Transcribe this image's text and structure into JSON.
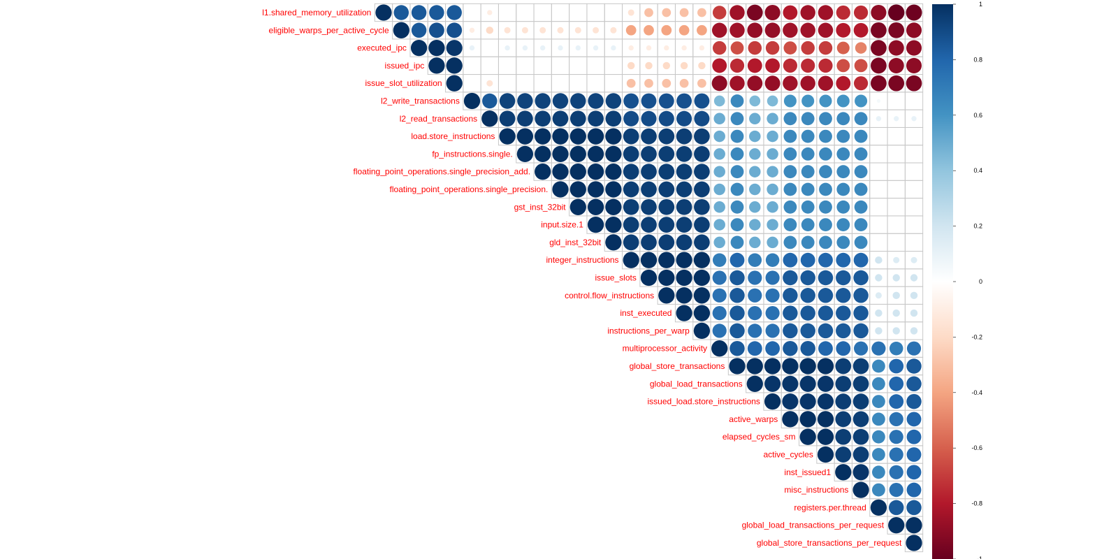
{
  "chart_data": {
    "type": "heatmap",
    "title": "",
    "subtitle": "",
    "variables": [
      "l1.shared_memory_utilization",
      "eligible_warps_per_active_cycle",
      "executed_ipc",
      "issued_ipc",
      "issue_slot_utilization",
      "l2_write_transactions",
      "l2_read_transactions",
      "load.store_instructions",
      "fp_instructions.single.",
      "floating_point_operations.single_precision_add.",
      "floating_point_operations.single_precision.",
      "gst_inst_32bit",
      "input.size.1",
      "gld_inst_32bit",
      "integer_instructions",
      "issue_slots",
      "control.flow_instructions",
      "inst_executed",
      "instructions_per_warp",
      "multiprocessor_activity",
      "global_store_transactions",
      "global_load_transactions",
      "issued_load.store_instructions",
      "active_warps",
      "elapsed_cycles_sm",
      "active_cycles",
      "inst_issued1",
      "misc_instructions",
      "registers.per.thread",
      "global_load_transactions_per_request",
      "global_store_transactions_per_request"
    ],
    "upper_triangle_rows": [
      [
        1,
        0.85,
        0.85,
        0.85,
        0.85,
        0,
        -0.1,
        0,
        0,
        0,
        0,
        0,
        0,
        0,
        -0.15,
        -0.3,
        -0.3,
        -0.3,
        -0.3,
        -0.7,
        -0.85,
        -0.95,
        -0.9,
        -0.8,
        -0.85,
        -0.85,
        -0.75,
        -0.75,
        -0.9,
        -1.0,
        -0.98
      ],
      [
        1,
        0.85,
        0.88,
        0.88,
        -0.1,
        -0.2,
        -0.15,
        -0.15,
        -0.15,
        -0.15,
        -0.15,
        -0.15,
        -0.15,
        -0.4,
        -0.4,
        -0.4,
        -0.4,
        -0.4,
        -0.85,
        -0.85,
        -0.88,
        -0.88,
        -0.85,
        -0.85,
        -0.85,
        -0.8,
        -0.8,
        -0.95,
        -0.95,
        -0.9
      ],
      [
        1,
        1.0,
        0.98,
        0.1,
        0,
        0.1,
        0.1,
        0.1,
        0.1,
        0.1,
        0.1,
        0.1,
        -0.1,
        -0.1,
        -0.1,
        -0.1,
        -0.1,
        -0.7,
        -0.65,
        -0.7,
        -0.7,
        -0.65,
        -0.7,
        -0.7,
        -0.6,
        -0.5,
        -0.95,
        -0.9,
        -0.9
      ],
      [
        1,
        1.0,
        0,
        0,
        0,
        0,
        0,
        0,
        0,
        0,
        0,
        -0.2,
        -0.2,
        -0.2,
        -0.2,
        -0.2,
        -0.8,
        -0.75,
        -0.8,
        -0.8,
        -0.75,
        -0.75,
        -0.75,
        -0.65,
        -0.65,
        -0.95,
        -0.9,
        -0.9
      ],
      [
        1,
        0,
        -0.15,
        0,
        0,
        0,
        0,
        0,
        0,
        0,
        -0.3,
        -0.3,
        -0.3,
        -0.3,
        -0.3,
        -0.9,
        -0.85,
        -0.88,
        -0.88,
        -0.85,
        -0.85,
        -0.85,
        -0.8,
        -0.75,
        -0.95,
        -0.95,
        -0.95
      ],
      [
        1,
        0.85,
        0.93,
        0.93,
        0.93,
        0.93,
        0.93,
        0.93,
        0.93,
        0.88,
        0.88,
        0.88,
        0.88,
        0.88,
        0.45,
        0.65,
        0.45,
        0.45,
        0.6,
        0.6,
        0.6,
        0.6,
        0.6,
        0.05,
        0,
        0
      ],
      [
        1,
        0.95,
        0.95,
        0.95,
        0.95,
        0.95,
        0.95,
        0.95,
        0.9,
        0.9,
        0.9,
        0.9,
        0.9,
        0.5,
        0.65,
        0.5,
        0.5,
        0.65,
        0.65,
        0.65,
        0.65,
        0.65,
        0.1,
        0.1,
        0.1
      ],
      [
        1,
        1.0,
        1.0,
        1.0,
        1.0,
        1.0,
        1.0,
        0.95,
        0.95,
        0.95,
        0.95,
        0.95,
        0.5,
        0.65,
        0.5,
        0.5,
        0.65,
        0.65,
        0.65,
        0.65,
        0.65,
        0,
        0,
        0
      ],
      [
        1,
        1.0,
        1.0,
        1.0,
        1.0,
        1.0,
        0.95,
        0.95,
        0.95,
        0.95,
        0.95,
        0.5,
        0.65,
        0.5,
        0.5,
        0.65,
        0.65,
        0.65,
        0.65,
        0.65,
        0,
        0,
        0
      ],
      [
        1,
        1.0,
        1.0,
        1.0,
        1.0,
        0.95,
        0.95,
        0.95,
        0.95,
        0.95,
        0.5,
        0.65,
        0.5,
        0.5,
        0.65,
        0.65,
        0.65,
        0.65,
        0.65,
        0,
        0,
        0
      ],
      [
        1,
        1.0,
        1.0,
        1.0,
        0.95,
        0.95,
        0.95,
        0.95,
        0.95,
        0.5,
        0.65,
        0.5,
        0.5,
        0.65,
        0.65,
        0.65,
        0.65,
        0.65,
        0,
        0,
        0
      ],
      [
        1,
        1.0,
        1.0,
        0.95,
        0.95,
        0.95,
        0.95,
        0.95,
        0.5,
        0.65,
        0.5,
        0.5,
        0.65,
        0.65,
        0.65,
        0.65,
        0.65,
        0,
        0,
        0
      ],
      [
        1,
        1.0,
        0.95,
        0.95,
        0.95,
        0.95,
        0.95,
        0.5,
        0.65,
        0.5,
        0.5,
        0.65,
        0.65,
        0.65,
        0.65,
        0.65,
        0,
        0,
        0
      ],
      [
        1,
        0.95,
        0.95,
        0.95,
        0.95,
        0.95,
        0.5,
        0.65,
        0.5,
        0.5,
        0.65,
        0.65,
        0.65,
        0.65,
        0.65,
        0,
        0,
        0
      ],
      [
        1,
        1.0,
        1.0,
        1.0,
        1.0,
        0.7,
        0.8,
        0.7,
        0.7,
        0.8,
        0.8,
        0.8,
        0.8,
        0.8,
        0.2,
        0.15,
        0.15
      ],
      [
        1,
        1.0,
        1.0,
        1.0,
        0.75,
        0.85,
        0.75,
        0.75,
        0.85,
        0.85,
        0.85,
        0.85,
        0.85,
        0.2,
        0.2,
        0.2
      ],
      [
        1,
        1.0,
        1.0,
        0.75,
        0.85,
        0.75,
        0.75,
        0.85,
        0.85,
        0.85,
        0.85,
        0.85,
        0.15,
        0.2,
        0.2
      ],
      [
        1,
        1.0,
        0.75,
        0.85,
        0.75,
        0.75,
        0.85,
        0.85,
        0.85,
        0.85,
        0.85,
        0.2,
        0.2,
        0.2
      ],
      [
        1,
        0.75,
        0.85,
        0.75,
        0.75,
        0.85,
        0.85,
        0.85,
        0.85,
        0.85,
        0.2,
        0.2,
        0.2
      ],
      [
        1,
        0.85,
        0.8,
        0.8,
        0.85,
        0.85,
        0.8,
        0.8,
        0.75,
        0.75,
        0.7,
        0.75
      ],
      [
        1,
        1.0,
        1.0,
        1.0,
        1.0,
        1.0,
        0.95,
        0.95,
        0.65,
        0.8,
        0.85
      ],
      [
        1,
        0.98,
        0.98,
        0.98,
        0.98,
        0.95,
        0.95,
        0.65,
        0.8,
        0.85
      ],
      [
        1,
        0.98,
        0.98,
        0.98,
        0.95,
        0.95,
        0.65,
        0.8,
        0.85
      ],
      [
        1,
        1.0,
        1.0,
        0.95,
        0.95,
        0.65,
        0.75,
        0.8
      ],
      [
        1,
        1.0,
        0.95,
        0.95,
        0.65,
        0.75,
        0.8
      ],
      [
        1,
        0.95,
        0.95,
        0.65,
        0.75,
        0.8
      ],
      [
        1,
        0.98,
        0.65,
        0.75,
        0.8
      ],
      [
        1,
        0.65,
        0.75,
        0.8
      ],
      [
        1,
        0.85,
        0.85
      ],
      [
        1,
        1.0
      ],
      [
        1
      ]
    ],
    "colorbar": {
      "range": [
        -1,
        1
      ],
      "tick_labels": [
        "1",
        "0.8",
        "0.6",
        "0.4",
        "0.2",
        "0",
        "-0.2",
        "-0.4",
        "-0.6",
        "-0.8",
        "-1"
      ],
      "colors": [
        "#053061",
        "#2166ac",
        "#4393c3",
        "#92c5de",
        "#d1e5f0",
        "#ffffff",
        "#fddbc7",
        "#f4a582",
        "#d6604d",
        "#b2182b",
        "#67001f"
      ]
    },
    "label_color": "#ff0000",
    "grid": true
  }
}
